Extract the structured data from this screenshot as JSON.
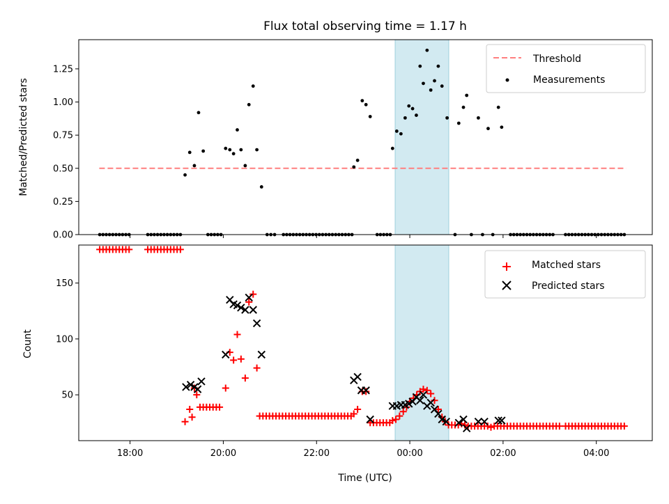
{
  "chart_data": [
    {
      "type": "scatter",
      "title": "Flux total observing time = 1.17 h",
      "xlabel": "",
      "ylabel": "Matched/Predicted stars",
      "ylim": [
        0,
        1.47
      ],
      "xlim_hours": [
        16.9,
        29.2
      ],
      "highlight_span": {
        "from": "23:37",
        "to": "00:47"
      },
      "legend": {
        "position": "top-right",
        "entries": [
          "Threshold",
          "Measurements"
        ]
      },
      "threshold": {
        "name": "Threshold",
        "value": 0.5,
        "x_start": 17.34,
        "x_end": 28.64,
        "color": "#ff7f7f"
      },
      "yticks": [
        "0.00",
        "0.25",
        "0.50",
        "0.75",
        "1.00",
        "1.25"
      ],
      "measurements": [
        [
          17.35,
          0
        ],
        [
          17.42,
          0
        ],
        [
          17.49,
          0
        ],
        [
          17.56,
          0
        ],
        [
          17.63,
          0
        ],
        [
          17.7,
          0
        ],
        [
          17.77,
          0
        ],
        [
          17.84,
          0
        ],
        [
          17.91,
          0
        ],
        [
          17.98,
          0
        ],
        [
          18.38,
          0
        ],
        [
          18.45,
          0
        ],
        [
          18.52,
          0
        ],
        [
          18.59,
          0
        ],
        [
          18.66,
          0
        ],
        [
          18.73,
          0
        ],
        [
          18.8,
          0
        ],
        [
          18.87,
          0
        ],
        [
          18.94,
          0
        ],
        [
          19.01,
          0
        ],
        [
          19.08,
          0
        ],
        [
          19.18,
          0.45
        ],
        [
          19.28,
          0.62
        ],
        [
          19.38,
          0.52
        ],
        [
          19.47,
          0.92
        ],
        [
          19.57,
          0.63
        ],
        [
          19.67,
          0
        ],
        [
          19.74,
          0
        ],
        [
          19.81,
          0
        ],
        [
          19.88,
          0
        ],
        [
          19.95,
          0
        ],
        [
          20.05,
          0.65
        ],
        [
          20.14,
          0.64
        ],
        [
          20.22,
          0.61
        ],
        [
          20.3,
          0.79
        ],
        [
          20.38,
          0.64
        ],
        [
          20.47,
          0.52
        ],
        [
          20.55,
          0.98
        ],
        [
          20.64,
          1.12
        ],
        [
          20.72,
          0.64
        ],
        [
          20.82,
          0.36
        ],
        [
          20.94,
          0
        ],
        [
          21.02,
          0
        ],
        [
          21.1,
          0
        ],
        [
          21.29,
          0
        ],
        [
          21.36,
          0
        ],
        [
          21.43,
          0
        ],
        [
          21.5,
          0
        ],
        [
          21.57,
          0
        ],
        [
          21.64,
          0
        ],
        [
          21.71,
          0
        ],
        [
          21.78,
          0
        ],
        [
          21.85,
          0
        ],
        [
          21.92,
          0
        ],
        [
          21.99,
          0
        ],
        [
          22.06,
          0
        ],
        [
          22.13,
          0
        ],
        [
          22.2,
          0
        ],
        [
          22.27,
          0
        ],
        [
          22.34,
          0
        ],
        [
          22.41,
          0
        ],
        [
          22.48,
          0
        ],
        [
          22.55,
          0
        ],
        [
          22.62,
          0
        ],
        [
          22.69,
          0
        ],
        [
          22.76,
          0
        ],
        [
          22.8,
          0.51
        ],
        [
          22.88,
          0.56
        ],
        [
          22.98,
          1.01
        ],
        [
          23.06,
          0.98
        ],
        [
          23.15,
          0.89
        ],
        [
          23.3,
          0
        ],
        [
          23.37,
          0
        ],
        [
          23.44,
          0
        ],
        [
          23.51,
          0
        ],
        [
          23.58,
          0
        ],
        [
          23.63,
          0.65
        ],
        [
          23.72,
          0.78
        ],
        [
          23.81,
          0.76
        ],
        [
          23.9,
          0.88
        ],
        [
          23.98,
          0.97
        ],
        [
          24.06,
          0.95
        ],
        [
          24.14,
          0.9
        ],
        [
          24.22,
          1.27
        ],
        [
          24.29,
          1.14
        ],
        [
          24.37,
          1.39
        ],
        [
          24.45,
          1.09
        ],
        [
          24.53,
          1.16
        ],
        [
          24.61,
          1.27
        ],
        [
          24.69,
          1.12
        ],
        [
          24.8,
          0.88
        ],
        [
          24.97,
          0
        ],
        [
          25.05,
          0.84
        ],
        [
          25.15,
          0.96
        ],
        [
          25.22,
          1.05
        ],
        [
          25.32,
          0
        ],
        [
          25.47,
          0.88
        ],
        [
          25.56,
          0
        ],
        [
          25.68,
          0.8
        ],
        [
          25.78,
          0
        ],
        [
          25.9,
          0.96
        ],
        [
          25.97,
          0.81
        ],
        [
          26.16,
          0
        ],
        [
          26.23,
          0
        ],
        [
          26.3,
          0
        ],
        [
          26.37,
          0
        ],
        [
          26.44,
          0
        ],
        [
          26.51,
          0
        ],
        [
          26.58,
          0
        ],
        [
          26.65,
          0
        ],
        [
          26.72,
          0
        ],
        [
          26.79,
          0
        ],
        [
          26.86,
          0
        ],
        [
          26.93,
          0
        ],
        [
          27.0,
          0
        ],
        [
          27.07,
          0
        ],
        [
          27.34,
          0
        ],
        [
          27.41,
          0
        ],
        [
          27.48,
          0
        ],
        [
          27.55,
          0
        ],
        [
          27.62,
          0
        ],
        [
          27.69,
          0
        ],
        [
          27.76,
          0
        ],
        [
          27.83,
          0
        ],
        [
          27.9,
          0
        ],
        [
          27.97,
          0
        ],
        [
          28.04,
          0
        ],
        [
          28.11,
          0
        ],
        [
          28.18,
          0
        ],
        [
          28.25,
          0
        ],
        [
          28.32,
          0
        ],
        [
          28.39,
          0
        ],
        [
          28.46,
          0
        ],
        [
          28.53,
          0
        ],
        [
          28.6,
          0
        ]
      ]
    },
    {
      "type": "scatter",
      "title": "",
      "xlabel": "Time (UTC)",
      "ylabel": "Count",
      "ylim": [
        9,
        184
      ],
      "xlim_hours": [
        16.9,
        29.2
      ],
      "highlight_span": {
        "from": "23:37",
        "to": "00:47"
      },
      "legend": {
        "position": "top-right",
        "entries": [
          "Matched stars",
          "Predicted stars"
        ]
      },
      "yticks": [
        "50",
        "100",
        "150"
      ],
      "xticks": [
        "18:00",
        "20:00",
        "22:00",
        "00:00",
        "02:00",
        "04:00"
      ],
      "matched": [
        [
          17.35,
          180
        ],
        [
          17.42,
          180
        ],
        [
          17.49,
          180
        ],
        [
          17.56,
          180
        ],
        [
          17.63,
          180
        ],
        [
          17.7,
          180
        ],
        [
          17.77,
          180
        ],
        [
          17.84,
          180
        ],
        [
          17.91,
          180
        ],
        [
          17.98,
          180
        ],
        [
          18.38,
          180
        ],
        [
          18.45,
          180
        ],
        [
          18.52,
          180
        ],
        [
          18.59,
          180
        ],
        [
          18.66,
          180
        ],
        [
          18.73,
          180
        ],
        [
          18.8,
          180
        ],
        [
          18.87,
          180
        ],
        [
          18.94,
          180
        ],
        [
          19.01,
          180
        ],
        [
          19.08,
          180
        ],
        [
          19.18,
          26
        ],
        [
          19.28,
          37
        ],
        [
          19.33,
          30
        ],
        [
          19.38,
          56
        ],
        [
          19.43,
          50
        ],
        [
          19.5,
          39
        ],
        [
          19.57,
          39
        ],
        [
          19.64,
          39
        ],
        [
          19.71,
          39
        ],
        [
          19.78,
          39
        ],
        [
          19.85,
          39
        ],
        [
          19.92,
          39
        ],
        [
          20.05,
          56
        ],
        [
          20.14,
          88
        ],
        [
          20.22,
          81
        ],
        [
          20.3,
          104
        ],
        [
          20.38,
          82
        ],
        [
          20.47,
          65
        ],
        [
          20.55,
          133
        ],
        [
          20.64,
          140
        ],
        [
          20.72,
          74
        ],
        [
          20.78,
          31
        ],
        [
          20.85,
          31
        ],
        [
          20.92,
          31
        ],
        [
          20.99,
          31
        ],
        [
          21.06,
          31
        ],
        [
          21.13,
          31
        ],
        [
          21.2,
          31
        ],
        [
          21.27,
          31
        ],
        [
          21.34,
          31
        ],
        [
          21.41,
          31
        ],
        [
          21.48,
          31
        ],
        [
          21.55,
          31
        ],
        [
          21.62,
          31
        ],
        [
          21.69,
          31
        ],
        [
          21.76,
          31
        ],
        [
          21.83,
          31
        ],
        [
          21.9,
          31
        ],
        [
          21.97,
          31
        ],
        [
          22.04,
          31
        ],
        [
          22.11,
          31
        ],
        [
          22.18,
          31
        ],
        [
          22.25,
          31
        ],
        [
          22.32,
          31
        ],
        [
          22.39,
          31
        ],
        [
          22.46,
          31
        ],
        [
          22.53,
          31
        ],
        [
          22.6,
          31
        ],
        [
          22.67,
          31
        ],
        [
          22.74,
          31
        ],
        [
          22.8,
          33
        ],
        [
          22.88,
          37
        ],
        [
          22.98,
          53
        ],
        [
          23.06,
          53
        ],
        [
          23.15,
          25
        ],
        [
          23.22,
          25
        ],
        [
          23.29,
          25
        ],
        [
          23.36,
          25
        ],
        [
          23.43,
          25
        ],
        [
          23.5,
          25
        ],
        [
          23.57,
          25
        ],
        [
          23.63,
          27
        ],
        [
          23.7,
          28
        ],
        [
          23.78,
          31
        ],
        [
          23.86,
          35
        ],
        [
          23.93,
          39
        ],
        [
          24.0,
          44
        ],
        [
          24.08,
          47
        ],
        [
          24.15,
          50
        ],
        [
          24.22,
          53
        ],
        [
          24.29,
          55
        ],
        [
          24.37,
          54
        ],
        [
          24.45,
          51
        ],
        [
          24.53,
          45
        ],
        [
          24.61,
          37
        ],
        [
          24.69,
          30
        ],
        [
          24.76,
          26
        ],
        [
          24.83,
          23
        ],
        [
          24.9,
          23
        ],
        [
          24.97,
          23
        ],
        [
          25.04,
          23
        ],
        [
          25.11,
          24
        ],
        [
          25.18,
          23
        ],
        [
          25.25,
          22
        ],
        [
          25.32,
          22
        ],
        [
          25.39,
          22
        ],
        [
          25.46,
          22
        ],
        [
          25.53,
          22
        ],
        [
          25.6,
          22
        ],
        [
          25.67,
          22
        ],
        [
          25.74,
          21
        ],
        [
          25.81,
          22
        ],
        [
          25.88,
          22
        ],
        [
          25.95,
          22
        ],
        [
          26.02,
          22
        ],
        [
          26.09,
          22
        ],
        [
          26.16,
          22
        ],
        [
          26.23,
          22
        ],
        [
          26.3,
          22
        ],
        [
          26.37,
          22
        ],
        [
          26.44,
          22
        ],
        [
          26.51,
          22
        ],
        [
          26.58,
          22
        ],
        [
          26.65,
          22
        ],
        [
          26.72,
          22
        ],
        [
          26.79,
          22
        ],
        [
          26.86,
          22
        ],
        [
          26.93,
          22
        ],
        [
          27.0,
          22
        ],
        [
          27.07,
          22
        ],
        [
          27.14,
          22
        ],
        [
          27.21,
          22
        ],
        [
          27.34,
          22
        ],
        [
          27.41,
          22
        ],
        [
          27.48,
          22
        ],
        [
          27.55,
          22
        ],
        [
          27.62,
          22
        ],
        [
          27.69,
          22
        ],
        [
          27.76,
          22
        ],
        [
          27.83,
          22
        ],
        [
          27.9,
          22
        ],
        [
          27.97,
          22
        ],
        [
          28.04,
          22
        ],
        [
          28.11,
          22
        ],
        [
          28.18,
          22
        ],
        [
          28.25,
          22
        ],
        [
          28.32,
          22
        ],
        [
          28.39,
          22
        ],
        [
          28.46,
          22
        ],
        [
          28.53,
          22
        ],
        [
          28.6,
          22
        ]
      ],
      "predicted": [
        [
          19.2,
          57
        ],
        [
          19.3,
          59
        ],
        [
          19.38,
          57
        ],
        [
          19.45,
          55
        ],
        [
          19.53,
          62
        ],
        [
          20.05,
          86
        ],
        [
          20.14,
          135
        ],
        [
          20.22,
          131
        ],
        [
          20.3,
          130
        ],
        [
          20.38,
          128
        ],
        [
          20.47,
          126
        ],
        [
          20.55,
          137
        ],
        [
          20.64,
          126
        ],
        [
          20.72,
          114
        ],
        [
          20.82,
          86
        ],
        [
          22.8,
          63
        ],
        [
          22.88,
          66
        ],
        [
          22.96,
          54
        ],
        [
          23.06,
          54
        ],
        [
          23.15,
          28
        ],
        [
          23.63,
          40
        ],
        [
          23.72,
          40
        ],
        [
          23.81,
          41
        ],
        [
          23.9,
          41
        ],
        [
          23.98,
          42
        ],
        [
          24.06,
          44
        ],
        [
          24.14,
          48
        ],
        [
          24.22,
          45
        ],
        [
          24.29,
          50
        ],
        [
          24.37,
          40
        ],
        [
          24.45,
          43
        ],
        [
          24.53,
          37
        ],
        [
          24.61,
          33
        ],
        [
          24.69,
          28
        ],
        [
          24.78,
          26
        ],
        [
          25.05,
          25
        ],
        [
          25.15,
          28
        ],
        [
          25.22,
          20
        ],
        [
          25.47,
          26
        ],
        [
          25.6,
          26
        ],
        [
          25.9,
          27
        ],
        [
          25.97,
          27
        ]
      ]
    }
  ]
}
